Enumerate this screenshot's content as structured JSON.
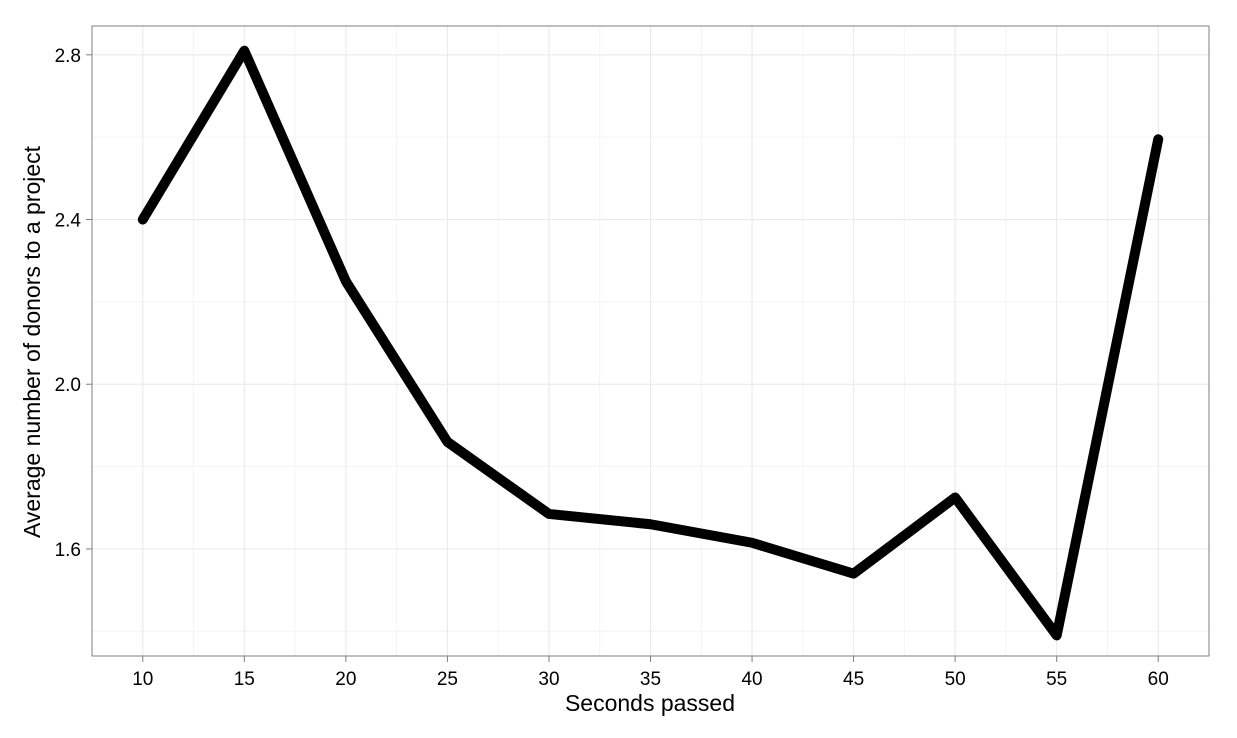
{
  "chart_data": {
    "type": "line",
    "title": "",
    "xlabel": "Seconds passed",
    "ylabel": "Average number of donors to a project",
    "x": [
      10,
      15,
      20,
      25,
      30,
      35,
      40,
      45,
      50,
      55,
      60
    ],
    "series": [
      {
        "values": [
          2.4,
          2.81,
          2.25,
          1.86,
          1.685,
          1.66,
          1.615,
          1.54,
          1.725,
          1.39,
          2.595
        ]
      }
    ],
    "xticks": [
      10,
      15,
      20,
      25,
      30,
      35,
      40,
      45,
      50,
      55,
      60
    ],
    "yticks": [
      1.6,
      2.0,
      2.4,
      2.8
    ],
    "xlim": [
      7.5,
      62.5
    ],
    "ylim": [
      1.34,
      2.87
    ],
    "grid": true,
    "legend": "none",
    "colors": {
      "line": "#000000",
      "grid_major": "#e8e8e8",
      "grid_minor": "#f4f4f4",
      "panel_border": "#7f7f7f",
      "axis_tick": "#7f7f7f"
    }
  }
}
